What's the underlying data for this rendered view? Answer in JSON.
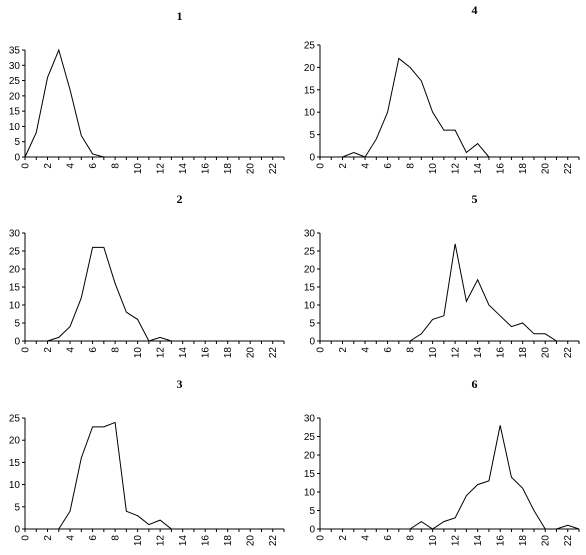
{
  "chart_data": [
    {
      "type": "line",
      "title": "1",
      "xlabel": "",
      "ylabel": "",
      "xlim": [
        0,
        23
      ],
      "ylim": [
        0,
        35
      ],
      "yticks": [
        0,
        5,
        10,
        15,
        20,
        25,
        30,
        35
      ],
      "xticks": [
        0,
        2,
        4,
        6,
        8,
        10,
        12,
        14,
        16,
        18,
        20,
        22
      ],
      "xtick_labels": [
        "0",
        "2",
        "4",
        "6",
        "8",
        "10",
        "12",
        "14",
        "16",
        "18",
        "20",
        "22"
      ],
      "ytick_labels": [
        "0",
        "5",
        "10",
        "15",
        "20",
        "25",
        "30",
        "35"
      ],
      "grid": false,
      "legend": "none",
      "series": [
        {
          "x": [
            0,
            1,
            2,
            3,
            4,
            5,
            6,
            7
          ],
          "y": [
            0,
            8,
            26,
            35,
            22,
            7,
            1,
            0
          ]
        }
      ]
    },
    {
      "type": "line",
      "title": "2",
      "xlabel": "",
      "ylabel": "",
      "xlim": [
        0,
        23
      ],
      "ylim": [
        0,
        30
      ],
      "yticks": [
        0,
        5,
        10,
        15,
        20,
        25,
        30
      ],
      "xticks": [
        0,
        2,
        4,
        6,
        8,
        10,
        12,
        14,
        16,
        18,
        20,
        22
      ],
      "xtick_labels": [
        "0",
        "2",
        "4",
        "6",
        "8",
        "10",
        "12",
        "14",
        "16",
        "18",
        "20",
        "22"
      ],
      "ytick_labels": [
        "0",
        "5",
        "10",
        "15",
        "20",
        "25",
        "30"
      ],
      "grid": false,
      "legend": "none",
      "series": [
        {
          "x": [
            2,
            3,
            4,
            5,
            6,
            7,
            8,
            9,
            10,
            11,
            12,
            13
          ],
          "y": [
            0,
            1,
            4,
            12,
            26,
            26,
            16,
            8,
            6,
            0,
            1,
            0
          ]
        }
      ]
    },
    {
      "type": "line",
      "title": "3",
      "xlabel": "",
      "ylabel": "",
      "xlim": [
        0,
        23
      ],
      "ylim": [
        0,
        25
      ],
      "yticks": [
        0,
        5,
        10,
        15,
        20,
        25
      ],
      "xticks": [
        0,
        2,
        4,
        6,
        8,
        10,
        12,
        14,
        16,
        18,
        20,
        22
      ],
      "xtick_labels": [
        "0",
        "2",
        "4",
        "6",
        "8",
        "10",
        "12",
        "14",
        "16",
        "18",
        "20",
        "22"
      ],
      "ytick_labels": [
        "0",
        "5",
        "10",
        "15",
        "20",
        "25"
      ],
      "grid": false,
      "legend": "none",
      "series": [
        {
          "x": [
            3,
            4,
            5,
            6,
            7,
            8,
            9,
            10,
            11,
            12,
            13
          ],
          "y": [
            0,
            4,
            16,
            23,
            23,
            24,
            4,
            3,
            1,
            2,
            0
          ]
        }
      ]
    },
    {
      "type": "line",
      "title": "4",
      "xlabel": "",
      "ylabel": "",
      "xlim": [
        0,
        23
      ],
      "ylim": [
        0,
        25
      ],
      "yticks": [
        0,
        5,
        10,
        15,
        20,
        25
      ],
      "xticks": [
        0,
        2,
        4,
        6,
        8,
        10,
        12,
        14,
        16,
        18,
        20,
        22
      ],
      "xtick_labels": [
        "0",
        "2",
        "4",
        "6",
        "8",
        "10",
        "12",
        "14",
        "16",
        "18",
        "20",
        "22"
      ],
      "ytick_labels": [
        "0",
        "5",
        "10",
        "15",
        "20",
        "25"
      ],
      "grid": false,
      "legend": "none",
      "series": [
        {
          "x": [
            2,
            3,
            4,
            5,
            6,
            7,
            8,
            9,
            10,
            11,
            12,
            13,
            14,
            15
          ],
          "y": [
            0,
            1,
            0,
            4,
            10,
            22,
            20,
            17,
            10,
            6,
            6,
            1,
            3,
            0
          ]
        }
      ]
    },
    {
      "type": "line",
      "title": "5",
      "xlabel": "",
      "ylabel": "",
      "xlim": [
        0,
        23
      ],
      "ylim": [
        0,
        30
      ],
      "yticks": [
        0,
        5,
        10,
        15,
        20,
        25,
        30
      ],
      "xticks": [
        0,
        2,
        4,
        6,
        8,
        10,
        12,
        14,
        16,
        18,
        20,
        22
      ],
      "xtick_labels": [
        "0",
        "2",
        "4",
        "6",
        "8",
        "10",
        "12",
        "14",
        "16",
        "18",
        "20",
        "22"
      ],
      "ytick_labels": [
        "0",
        "5",
        "10",
        "15",
        "20",
        "25",
        "30"
      ],
      "grid": false,
      "legend": "none",
      "series": [
        {
          "x": [
            8,
            9,
            10,
            11,
            12,
            13,
            14,
            15,
            16,
            17,
            18,
            19,
            20,
            21
          ],
          "y": [
            0,
            2,
            6,
            7,
            27,
            11,
            17,
            10,
            7,
            4,
            5,
            2,
            2,
            0
          ]
        }
      ]
    },
    {
      "type": "line",
      "title": "6",
      "xlabel": "",
      "ylabel": "",
      "xlim": [
        0,
        23
      ],
      "ylim": [
        0,
        30
      ],
      "yticks": [
        0,
        5,
        10,
        15,
        20,
        25,
        30
      ],
      "xticks": [
        0,
        2,
        4,
        6,
        8,
        10,
        12,
        14,
        16,
        18,
        20,
        22
      ],
      "xtick_labels": [
        "0",
        "2",
        "4",
        "6",
        "8",
        "10",
        "12",
        "14",
        "16",
        "18",
        "20",
        "22"
      ],
      "ytick_labels": [
        "0",
        "5",
        "10",
        "15",
        "20",
        "25",
        "30"
      ],
      "grid": false,
      "legend": "none",
      "series": [
        {
          "x": [
            8,
            9,
            10,
            11,
            12,
            13,
            14,
            15,
            16,
            17,
            18,
            19,
            20,
            21,
            22,
            23
          ],
          "y": [
            0,
            2,
            0,
            2,
            3,
            9,
            12,
            13,
            28,
            14,
            11,
            5,
            0,
            0,
            1,
            0
          ]
        }
      ]
    }
  ]
}
